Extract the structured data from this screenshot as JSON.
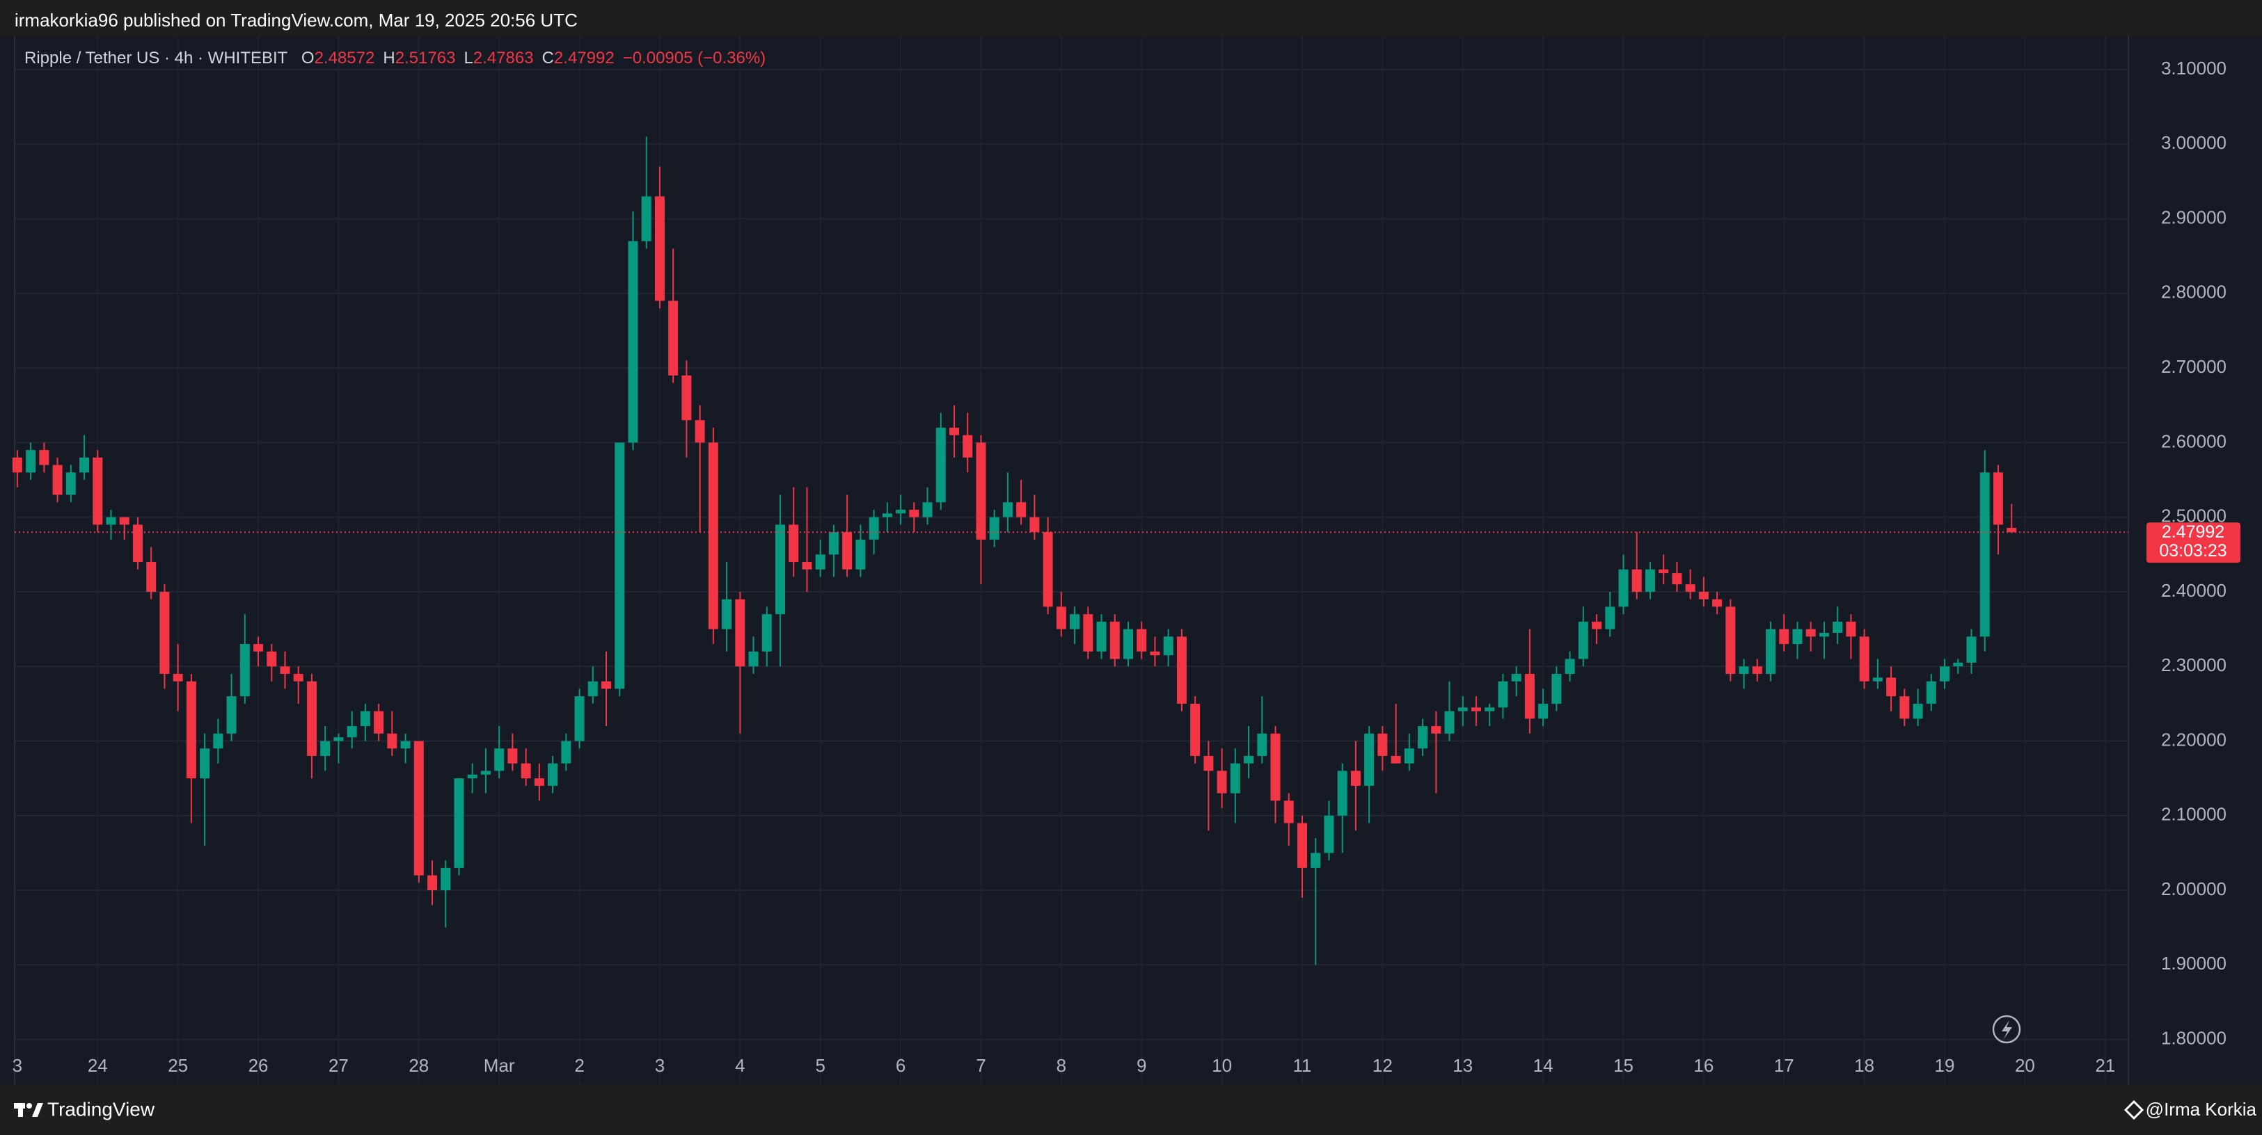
{
  "header": {
    "published": "irmakorkia96 published on TradingView.com, Mar 19, 2025 20:56 UTC"
  },
  "footer": {
    "brand": "TradingView",
    "author": "@Irma Korkia"
  },
  "chart_data": {
    "type": "candlestick",
    "symbol": "Ripple / Tether US · 4h · WHITEBIT",
    "ohlc_letters": [
      "O",
      "H",
      "L",
      "C"
    ],
    "change": "−0.00905 (−0.36%)",
    "countdown": "03:03:23",
    "up_color": "#089981",
    "down_color": "#f23645",
    "grid": true,
    "ylim": [
      1.74,
      3.141
    ],
    "yticks": [
      {
        "value": 1.8,
        "label": "1.80000"
      },
      {
        "value": 1.9,
        "label": "1.90000"
      },
      {
        "value": 2.0,
        "label": "2.00000"
      },
      {
        "value": 2.1,
        "label": "2.10000"
      },
      {
        "value": 2.2,
        "label": "2.20000"
      },
      {
        "value": 2.3,
        "label": "2.30000"
      },
      {
        "value": 2.4,
        "label": "2.40000"
      },
      {
        "value": 2.5,
        "label": "2.50000"
      },
      {
        "value": 2.6,
        "label": "2.60000"
      },
      {
        "value": 2.7,
        "label": "2.70000"
      },
      {
        "value": 2.8,
        "label": "2.80000"
      },
      {
        "value": 2.9,
        "label": "2.90000"
      },
      {
        "value": 3.0,
        "label": "3.00000"
      },
      {
        "value": 3.1,
        "label": "3.10000"
      }
    ],
    "xtick_labels": [
      "3",
      "24",
      "25",
      "26",
      "27",
      "28",
      "Mar",
      "2",
      "3",
      "4",
      "5",
      "6",
      "7",
      "8",
      "9",
      "10",
      "11",
      "12",
      "13",
      "14",
      "15",
      "16",
      "17",
      "18",
      "19",
      "20",
      "21"
    ],
    "open": [
      2.58,
      2.56,
      2.59,
      2.57,
      2.53,
      2.56,
      2.58,
      2.49,
      2.5,
      2.49,
      2.44,
      2.4,
      2.29,
      2.28,
      2.15,
      2.19,
      2.21,
      2.26,
      2.33,
      2.32,
      2.3,
      2.29,
      2.28,
      2.18,
      2.2,
      2.205,
      2.22,
      2.24,
      2.21,
      2.19,
      2.2,
      2.02,
      2.0,
      2.03,
      2.15,
      2.155,
      2.16,
      2.19,
      2.17,
      2.15,
      2.14,
      2.17,
      2.2,
      2.26,
      2.28,
      2.27,
      2.6,
      2.87,
      2.93,
      2.79,
      2.69,
      2.63,
      2.6,
      2.35,
      2.39,
      2.3,
      2.32,
      2.37,
      2.49,
      2.44,
      2.43,
      2.45,
      2.48,
      2.43,
      2.47,
      2.5,
      2.505,
      2.51,
      2.5,
      2.52,
      2.62,
      2.61,
      2.6,
      2.47,
      2.5,
      2.52,
      2.5,
      2.48,
      2.38,
      2.35,
      2.37,
      2.32,
      2.36,
      2.31,
      2.35,
      2.32,
      2.315,
      2.34,
      2.25,
      2.18,
      2.16,
      2.13,
      2.17,
      2.18,
      2.21,
      2.12,
      2.09,
      2.03,
      2.05,
      2.1,
      2.16,
      2.14,
      2.21,
      2.18,
      2.17,
      2.19,
      2.22,
      2.21,
      2.24,
      2.245,
      2.24,
      2.245,
      2.28,
      2.29,
      2.23,
      2.25,
      2.29,
      2.31,
      2.36,
      2.35,
      2.38,
      2.43,
      2.4,
      2.43,
      2.425,
      2.41,
      2.4,
      2.39,
      2.38,
      2.29,
      2.3,
      2.29,
      2.35,
      2.33,
      2.35,
      2.34,
      2.345,
      2.36,
      2.34,
      2.28,
      2.285,
      2.26,
      2.23,
      2.25,
      2.28,
      2.3,
      2.305,
      2.34,
      2.56,
      2.48572
    ],
    "high": [
      2.59,
      2.6,
      2.6,
      2.58,
      2.57,
      2.61,
      2.59,
      2.51,
      2.5,
      2.5,
      2.46,
      2.41,
      2.33,
      2.29,
      2.21,
      2.23,
      2.29,
      2.37,
      2.34,
      2.33,
      2.32,
      2.3,
      2.29,
      2.22,
      2.21,
      2.24,
      2.25,
      2.25,
      2.24,
      2.21,
      2.2,
      2.04,
      2.04,
      2.15,
      2.17,
      2.19,
      2.22,
      2.21,
      2.19,
      2.17,
      2.18,
      2.21,
      2.27,
      2.3,
      2.32,
      2.6,
      2.91,
      3.01,
      2.97,
      2.86,
      2.71,
      2.65,
      2.62,
      2.44,
      2.4,
      2.34,
      2.38,
      2.53,
      2.54,
      2.54,
      2.47,
      2.49,
      2.53,
      2.49,
      2.51,
      2.52,
      2.53,
      2.52,
      2.54,
      2.64,
      2.65,
      2.64,
      2.61,
      2.51,
      2.56,
      2.55,
      2.53,
      2.5,
      2.4,
      2.38,
      2.38,
      2.37,
      2.37,
      2.36,
      2.36,
      2.34,
      2.35,
      2.35,
      2.26,
      2.2,
      2.19,
      2.19,
      2.22,
      2.26,
      2.22,
      2.13,
      2.1,
      2.07,
      2.12,
      2.17,
      2.2,
      2.22,
      2.22,
      2.25,
      2.21,
      2.23,
      2.24,
      2.28,
      2.26,
      2.26,
      2.25,
      2.29,
      2.3,
      2.35,
      2.27,
      2.3,
      2.32,
      2.38,
      2.37,
      2.4,
      2.45,
      2.48,
      2.44,
      2.45,
      2.44,
      2.43,
      2.42,
      2.4,
      2.39,
      2.31,
      2.31,
      2.36,
      2.37,
      2.36,
      2.36,
      2.36,
      2.38,
      2.37,
      2.35,
      2.31,
      2.3,
      2.27,
      2.27,
      2.29,
      2.31,
      2.31,
      2.35,
      2.59,
      2.57,
      2.51763
    ],
    "low": [
      2.54,
      2.55,
      2.56,
      2.52,
      2.52,
      2.55,
      2.48,
      2.47,
      2.47,
      2.43,
      2.39,
      2.27,
      2.24,
      2.09,
      2.06,
      2.17,
      2.2,
      2.25,
      2.3,
      2.28,
      2.27,
      2.25,
      2.15,
      2.16,
      2.17,
      2.19,
      2.2,
      2.2,
      2.18,
      2.17,
      2.01,
      1.98,
      1.95,
      2.02,
      2.13,
      2.13,
      2.15,
      2.16,
      2.14,
      2.12,
      2.13,
      2.16,
      2.19,
      2.25,
      2.22,
      2.26,
      2.59,
      2.86,
      2.78,
      2.68,
      2.58,
      2.48,
      2.33,
      2.32,
      2.21,
      2.29,
      2.3,
      2.3,
      2.42,
      2.4,
      2.42,
      2.42,
      2.42,
      2.42,
      2.45,
      2.48,
      2.49,
      2.48,
      2.49,
      2.51,
      2.58,
      2.56,
      2.41,
      2.46,
      2.48,
      2.49,
      2.47,
      2.37,
      2.34,
      2.33,
      2.31,
      2.31,
      2.3,
      2.3,
      2.31,
      2.3,
      2.3,
      2.24,
      2.17,
      2.08,
      2.11,
      2.09,
      2.15,
      2.17,
      2.09,
      2.06,
      1.99,
      1.9,
      2.04,
      2.05,
      2.08,
      2.09,
      2.16,
      2.17,
      2.16,
      2.18,
      2.13,
      2.2,
      2.22,
      2.22,
      2.22,
      2.23,
      2.26,
      2.21,
      2.22,
      2.24,
      2.28,
      2.3,
      2.33,
      2.34,
      2.37,
      2.39,
      2.39,
      2.41,
      2.4,
      2.39,
      2.38,
      2.37,
      2.28,
      2.27,
      2.28,
      2.28,
      2.32,
      2.31,
      2.32,
      2.31,
      2.33,
      2.31,
      2.27,
      2.27,
      2.24,
      2.22,
      2.22,
      2.24,
      2.27,
      2.29,
      2.29,
      2.32,
      2.45,
      2.47863
    ],
    "close": [
      2.56,
      2.59,
      2.57,
      2.53,
      2.56,
      2.58,
      2.49,
      2.5,
      2.49,
      2.44,
      2.4,
      2.29,
      2.28,
      2.15,
      2.19,
      2.21,
      2.26,
      2.33,
      2.32,
      2.3,
      2.29,
      2.28,
      2.18,
      2.2,
      2.205,
      2.22,
      2.24,
      2.21,
      2.19,
      2.2,
      2.02,
      2.0,
      2.03,
      2.15,
      2.155,
      2.16,
      2.19,
      2.17,
      2.15,
      2.14,
      2.17,
      2.2,
      2.26,
      2.28,
      2.27,
      2.6,
      2.87,
      2.93,
      2.79,
      2.69,
      2.63,
      2.6,
      2.35,
      2.39,
      2.3,
      2.32,
      2.37,
      2.49,
      2.44,
      2.43,
      2.45,
      2.48,
      2.43,
      2.47,
      2.5,
      2.505,
      2.51,
      2.5,
      2.52,
      2.62,
      2.61,
      2.58,
      2.47,
      2.5,
      2.52,
      2.5,
      2.48,
      2.38,
      2.35,
      2.37,
      2.32,
      2.36,
      2.31,
      2.35,
      2.32,
      2.315,
      2.34,
      2.25,
      2.18,
      2.16,
      2.13,
      2.17,
      2.18,
      2.21,
      2.12,
      2.09,
      2.03,
      2.05,
      2.1,
      2.16,
      2.14,
      2.21,
      2.18,
      2.17,
      2.19,
      2.22,
      2.21,
      2.24,
      2.245,
      2.24,
      2.245,
      2.28,
      2.29,
      2.23,
      2.25,
      2.29,
      2.31,
      2.36,
      2.35,
      2.38,
      2.43,
      2.4,
      2.43,
      2.425,
      2.41,
      2.4,
      2.39,
      2.38,
      2.29,
      2.3,
      2.29,
      2.35,
      2.33,
      2.35,
      2.34,
      2.345,
      2.36,
      2.34,
      2.28,
      2.285,
      2.26,
      2.23,
      2.25,
      2.28,
      2.3,
      2.305,
      2.34,
      2.56,
      2.49,
      2.47992
    ]
  }
}
